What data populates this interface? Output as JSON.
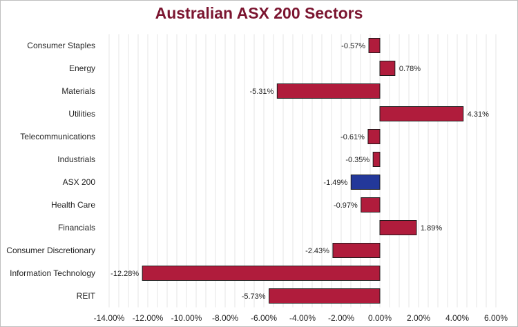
{
  "chart_data": {
    "type": "bar",
    "orientation": "horizontal",
    "title": "Australian ASX 200 Sectors",
    "categories": [
      "Consumer Staples",
      "Energy",
      "Materials",
      "Utilities",
      "Telecommunications",
      "Industrials",
      "ASX 200",
      "Health Care",
      "Financials",
      "Consumer Discretionary",
      "Information Technology",
      "REIT"
    ],
    "values": [
      -0.57,
      0.78,
      -5.31,
      4.31,
      -0.61,
      -0.35,
      -1.49,
      -0.97,
      1.89,
      -2.43,
      -12.28,
      -5.73
    ],
    "value_labels": [
      "-0.57%",
      "0.78%",
      "-5.31%",
      "4.31%",
      "-0.61%",
      "-0.35%",
      "-1.49%",
      "-0.97%",
      "1.89%",
      "-2.43%",
      "-12.28%",
      "-5.73%"
    ],
    "highlight_category": "ASX 200",
    "xlim": [
      -14,
      6
    ],
    "xticks": [
      -14,
      -12,
      -10,
      -8,
      -6,
      -4,
      -2,
      0,
      2,
      4,
      6
    ],
    "xtick_labels": [
      "-14.00%",
      "-12.00%",
      "-10.00%",
      "-8.00%",
      "-6.00%",
      "-4.00%",
      "-2.00%",
      "0.00%",
      "2.00%",
      "4.00%",
      "6.00%"
    ],
    "xlabel": "",
    "ylabel": "",
    "grid": "vertical minor",
    "legend": "none",
    "colors": {
      "bar": "#b01c3c",
      "highlight": "#23389a",
      "title": "#7b1530",
      "grid": "#e6e6e6"
    }
  }
}
